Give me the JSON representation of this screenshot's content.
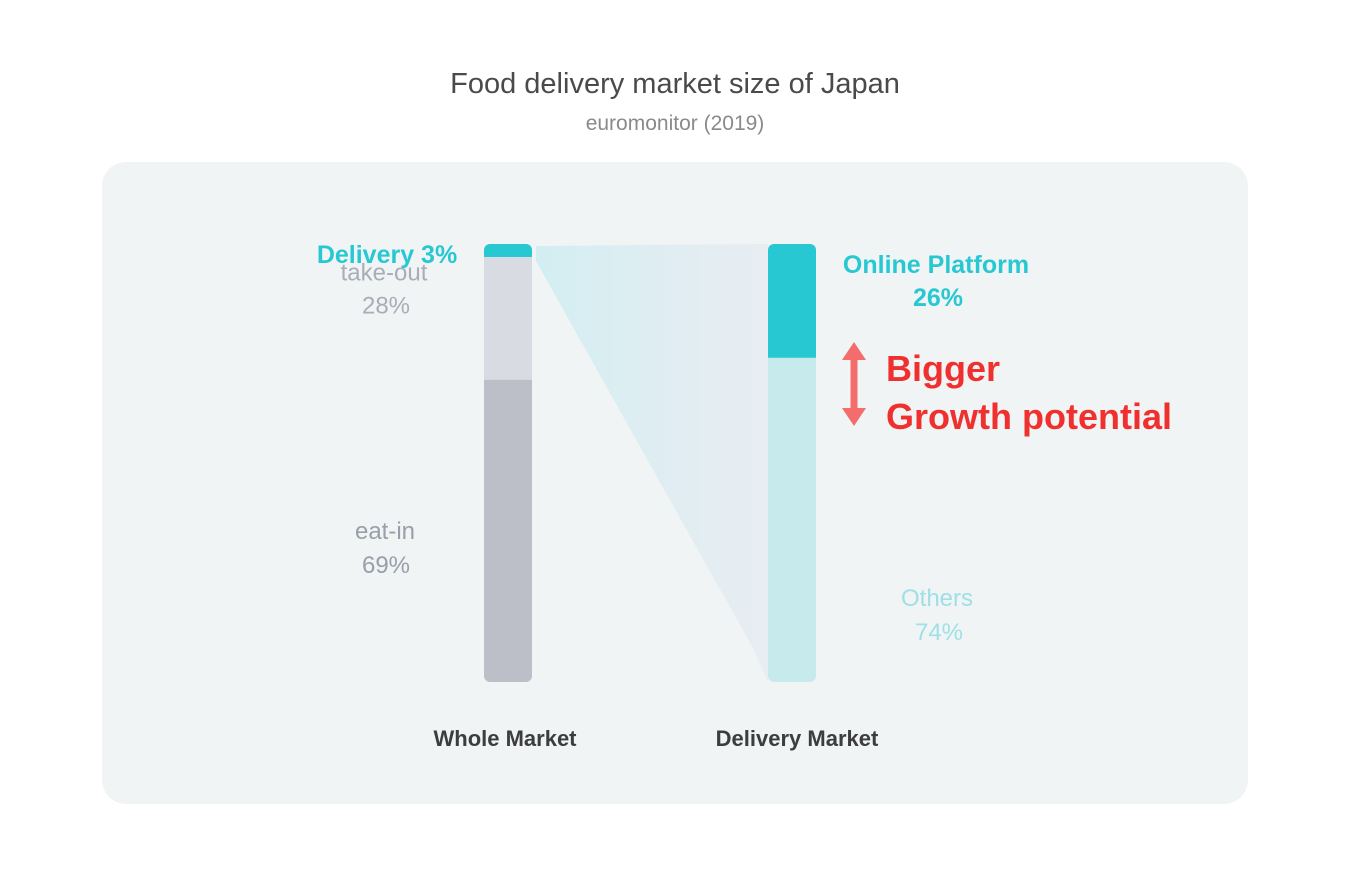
{
  "chart_data": {
    "type": "bar",
    "stacked": true,
    "title": "Food delivery market size of Japan",
    "subtitle": "euromonitor (2019)",
    "categories": [
      "Whole Market",
      "Delivery Market"
    ],
    "bars": [
      {
        "category": "Whole Market",
        "segments": [
          {
            "name": "Delivery",
            "label": "Delivery 3%",
            "value": 3,
            "color": "#28c8d3"
          },
          {
            "name": "take-out",
            "value_label": "28%",
            "value": 28,
            "color": "#d8dbe2"
          },
          {
            "name": "eat-in",
            "value_label": "69%",
            "value": 69,
            "color": "#bcbfc8"
          }
        ]
      },
      {
        "category": "Delivery Market",
        "segments": [
          {
            "name": "Online Platform",
            "value_label": "26%",
            "value": 26,
            "color": "#28c8d3"
          },
          {
            "name": "Others",
            "value_label": "74%",
            "value": 74,
            "color": "#c7ebed"
          }
        ]
      }
    ],
    "annotation": {
      "lines": [
        "Bigger",
        "Growth potential"
      ],
      "color": "#f0302f",
      "arrow_color": "#f36d6c"
    },
    "ylim": [
      0,
      100
    ],
    "grid": false,
    "legend": "none"
  }
}
